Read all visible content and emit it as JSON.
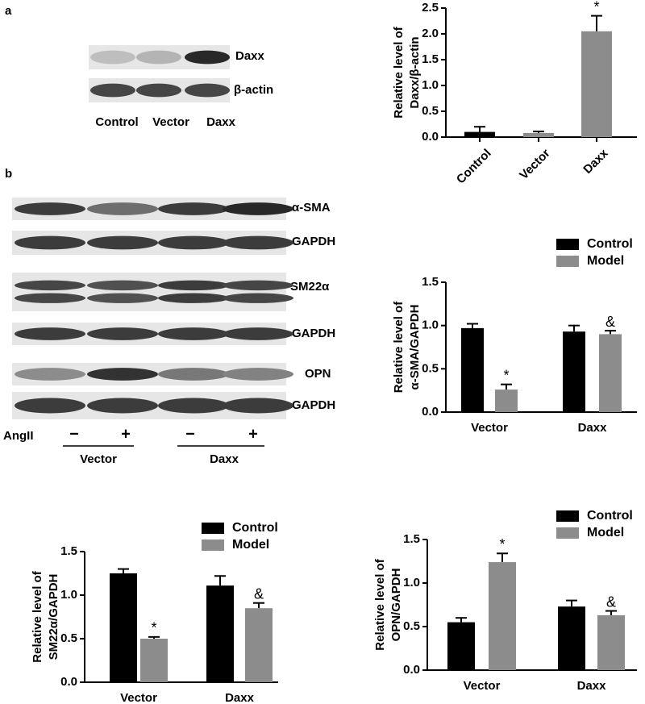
{
  "panels": [
    "a",
    "b"
  ],
  "blot_a": {
    "bands": [
      "Daxx",
      "β-actin"
    ],
    "lanes": [
      "Control",
      "Vector",
      "Daxx"
    ]
  },
  "blot_b": {
    "bands": [
      "α-SMA",
      "GAPDH",
      "SM22α",
      "GAPDH",
      "OPN",
      "GAPDH"
    ],
    "treatment": "AngII",
    "signs": [
      "−",
      "+",
      "−",
      "+"
    ],
    "groups": [
      "Vector",
      "Daxx"
    ]
  },
  "chart_data": [
    {
      "type": "bar",
      "ylabel": [
        "Relative level of",
        "Daxx/β-actin"
      ],
      "categories": [
        "Control",
        "Vector",
        "Daxx"
      ],
      "values": [
        0.1,
        0.08,
        2.05
      ],
      "errors": [
        0.1,
        0.03,
        0.3
      ],
      "colors": [
        "#000000",
        "#8c8c8c",
        "#8c8c8c"
      ],
      "annotations": [
        null,
        null,
        "*"
      ],
      "ylim": [
        0,
        2.5
      ],
      "yticks": [
        {
          "value": 0,
          "label": "0.0"
        },
        0.5,
        {
          "value": 1,
          "label": "1.0"
        },
        1.5,
        {
          "value": 2,
          "label": "2.0"
        },
        2.5
      ]
    },
    {
      "type": "grouped_bar",
      "ylabel": [
        "Relative level of",
        "α-SMA/GAPDH"
      ],
      "categories": [
        "Vector",
        "Daxx"
      ],
      "series": [
        {
          "name": "Control",
          "color": "#000000",
          "values": [
            0.97,
            0.93
          ],
          "errors": [
            0.05,
            0.07
          ],
          "annotations": [
            null,
            null
          ]
        },
        {
          "name": "Model",
          "color": "#8c8c8c",
          "values": [
            0.26,
            0.9
          ],
          "errors": [
            0.06,
            0.04
          ],
          "annotations": [
            "*",
            "&"
          ]
        }
      ],
      "ylim": [
        0,
        1.5
      ],
      "yticks": [
        {
          "value": 0,
          "label": "0.0"
        },
        0.5,
        {
          "value": 1,
          "label": "1.0"
        },
        1.5
      ]
    },
    {
      "type": "grouped_bar",
      "ylabel": [
        "Relative level of",
        "SM22α/GAPDH"
      ],
      "categories": [
        "Vector",
        "Daxx"
      ],
      "series": [
        {
          "name": "Control",
          "color": "#000000",
          "values": [
            1.25,
            1.11
          ],
          "errors": [
            0.05,
            0.11
          ],
          "annotations": [
            null,
            null
          ]
        },
        {
          "name": "Model",
          "color": "#8c8c8c",
          "values": [
            0.5,
            0.85
          ],
          "errors": [
            0.02,
            0.06
          ],
          "annotations": [
            "*",
            "&"
          ]
        }
      ],
      "ylim": [
        0,
        1.5
      ],
      "yticks": [
        {
          "value": 0,
          "label": "0.0"
        },
        0.5,
        {
          "value": 1,
          "label": "1.0"
        },
        1.5
      ]
    },
    {
      "type": "grouped_bar",
      "ylabel": [
        "Relative level of",
        "OPN/GAPDH"
      ],
      "categories": [
        "Vector",
        "Daxx"
      ],
      "series": [
        {
          "name": "Control",
          "color": "#000000",
          "values": [
            0.55,
            0.73
          ],
          "errors": [
            0.05,
            0.07
          ],
          "annotations": [
            null,
            null
          ]
        },
        {
          "name": "Model",
          "color": "#8c8c8c",
          "values": [
            1.24,
            0.63
          ],
          "errors": [
            0.1,
            0.05
          ],
          "annotations": [
            "*",
            "&"
          ]
        }
      ],
      "ylim": [
        0,
        1.5
      ],
      "yticks": [
        {
          "value": 0,
          "label": "0.0"
        },
        0.5,
        {
          "value": 1,
          "label": "1.0"
        },
        1.5
      ]
    }
  ]
}
